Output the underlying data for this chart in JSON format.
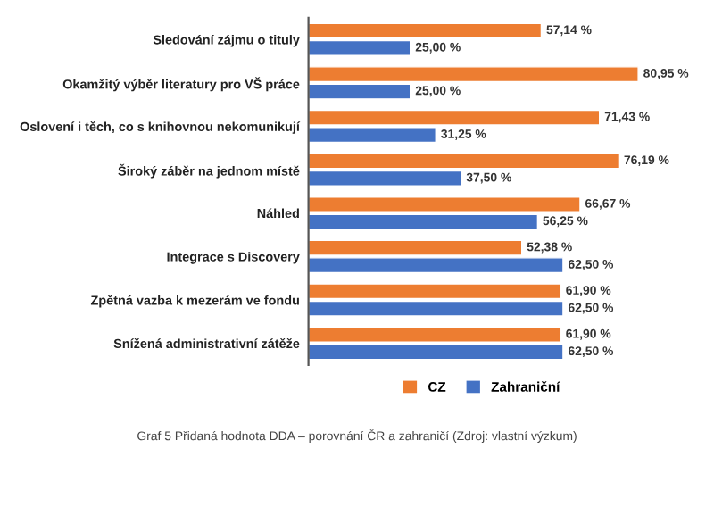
{
  "chart_data": {
    "type": "bar",
    "orientation": "horizontal",
    "categories": [
      "Sledování zájmu o tituly",
      "Okamžitý výběr literatury pro VŠ práce",
      "Oslovení i těch, co s knihovnou nekomunikují",
      "Široký záběr na jednom místě",
      "Náhled",
      "Integrace s Discovery",
      "Zpětná vazba k mezerám ve fondu",
      "Snížená administrativní zátěže"
    ],
    "series": [
      {
        "name": "CZ",
        "color": "#ed7d31",
        "values": [
          57.14,
          80.95,
          71.43,
          76.19,
          66.67,
          52.38,
          61.9,
          61.9
        ],
        "value_labels": [
          "57,14 %",
          "80,95 %",
          "71,43 %",
          "76,19 %",
          "66,67 %",
          "52,38 %",
          "61,90 %",
          "61,90 %"
        ]
      },
      {
        "name": "Zahraniční",
        "color": "#4472c4",
        "values": [
          25.0,
          25.0,
          31.25,
          37.5,
          56.25,
          62.5,
          62.5,
          62.5
        ],
        "value_labels": [
          "25,00 %",
          "25,00 %",
          "31,25 %",
          "37,50 %",
          "56,25 %",
          "62,50 %",
          "62,50 %",
          "62,50 %"
        ]
      }
    ],
    "tick_labels": "y",
    "legend": "bottom",
    "grid": false,
    "annotations": [
      "Graf 5 Přidaná hodnota DDA – porovnání ČR a zahraničí (Zdroj: vlastní výzkum)"
    ]
  }
}
